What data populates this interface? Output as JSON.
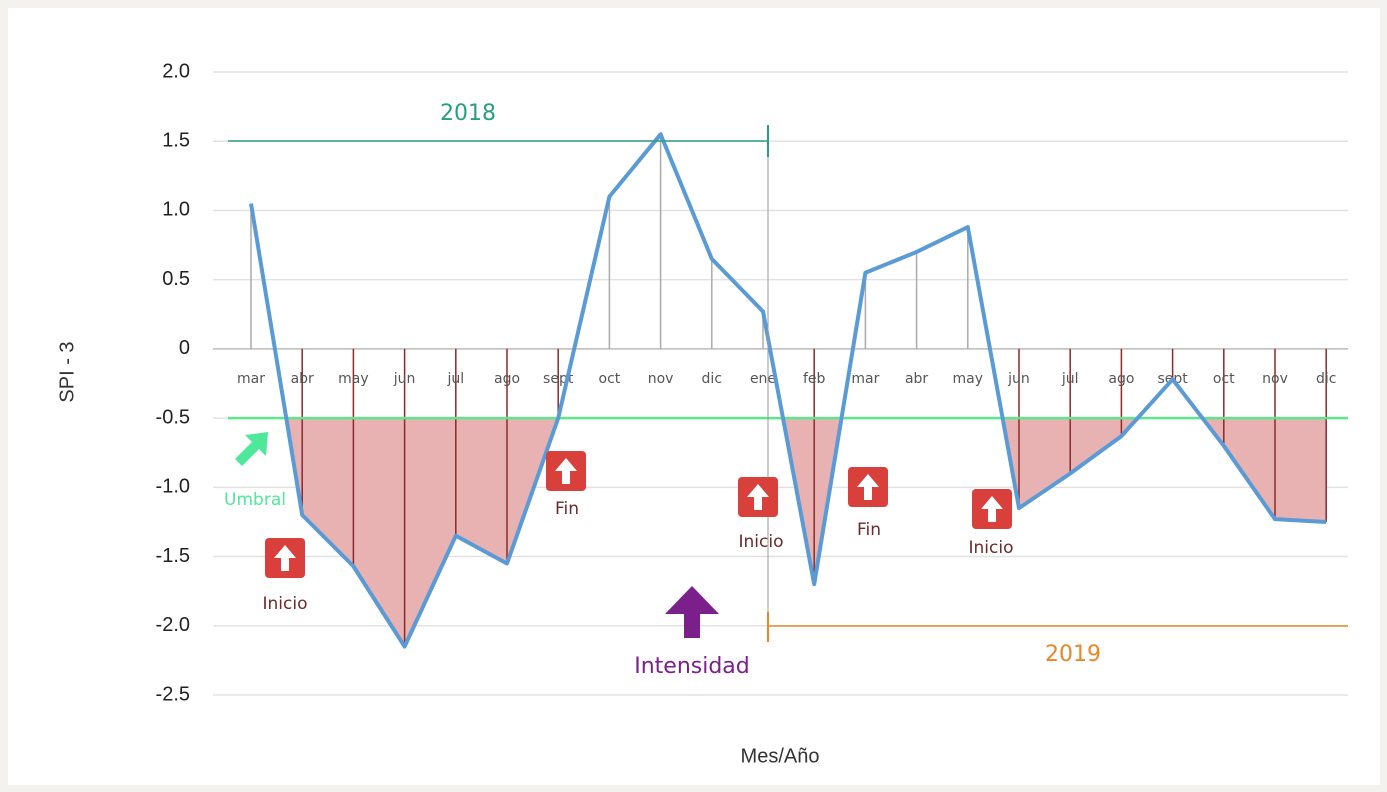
{
  "chart_data": {
    "type": "line",
    "categories": [
      "mar",
      "abr",
      "may",
      "jun",
      "jul",
      "ago",
      "sept",
      "oct",
      "nov",
      "dic",
      "ene",
      "feb",
      "mar",
      "abr",
      "may",
      "jun",
      "jul",
      "ago",
      "sept",
      "oct",
      "nov",
      "dic"
    ],
    "series": [
      {
        "name": "SPI - 3",
        "color": "#5b9bd5",
        "values": [
          1.05,
          -1.2,
          -1.57,
          -2.15,
          -1.35,
          -1.55,
          -0.5,
          1.1,
          1.55,
          0.65,
          0.27,
          -1.7,
          0.55,
          0.7,
          0.88,
          -1.15,
          -0.9,
          -0.63,
          -0.22,
          -0.7,
          -1.23,
          -1.25
        ]
      }
    ],
    "threshold": -0.5,
    "threshold_color": "#5ce88a",
    "fill_color": "#e8b2b2",
    "ylim": [
      -2.5,
      2.0
    ],
    "yticks": [
      {
        "value": 2.0,
        "label": "2.0"
      },
      1.5,
      {
        "value": 1.0,
        "label": "1.0"
      },
      0.5,
      0,
      -0.5,
      {
        "value": -1.0,
        "label": "-1.0"
      },
      -1.5,
      {
        "value": -2.0,
        "label": "-2.0"
      },
      -2.5
    ],
    "grid": true,
    "y_label": "SPI - 3",
    "x_label": "Mes/Año",
    "annotations": [
      "2018",
      "2019",
      "Umbral",
      "Inicio",
      "Fin",
      "Inicio",
      "Fin",
      "Inicio",
      "Intensidad"
    ]
  }
}
